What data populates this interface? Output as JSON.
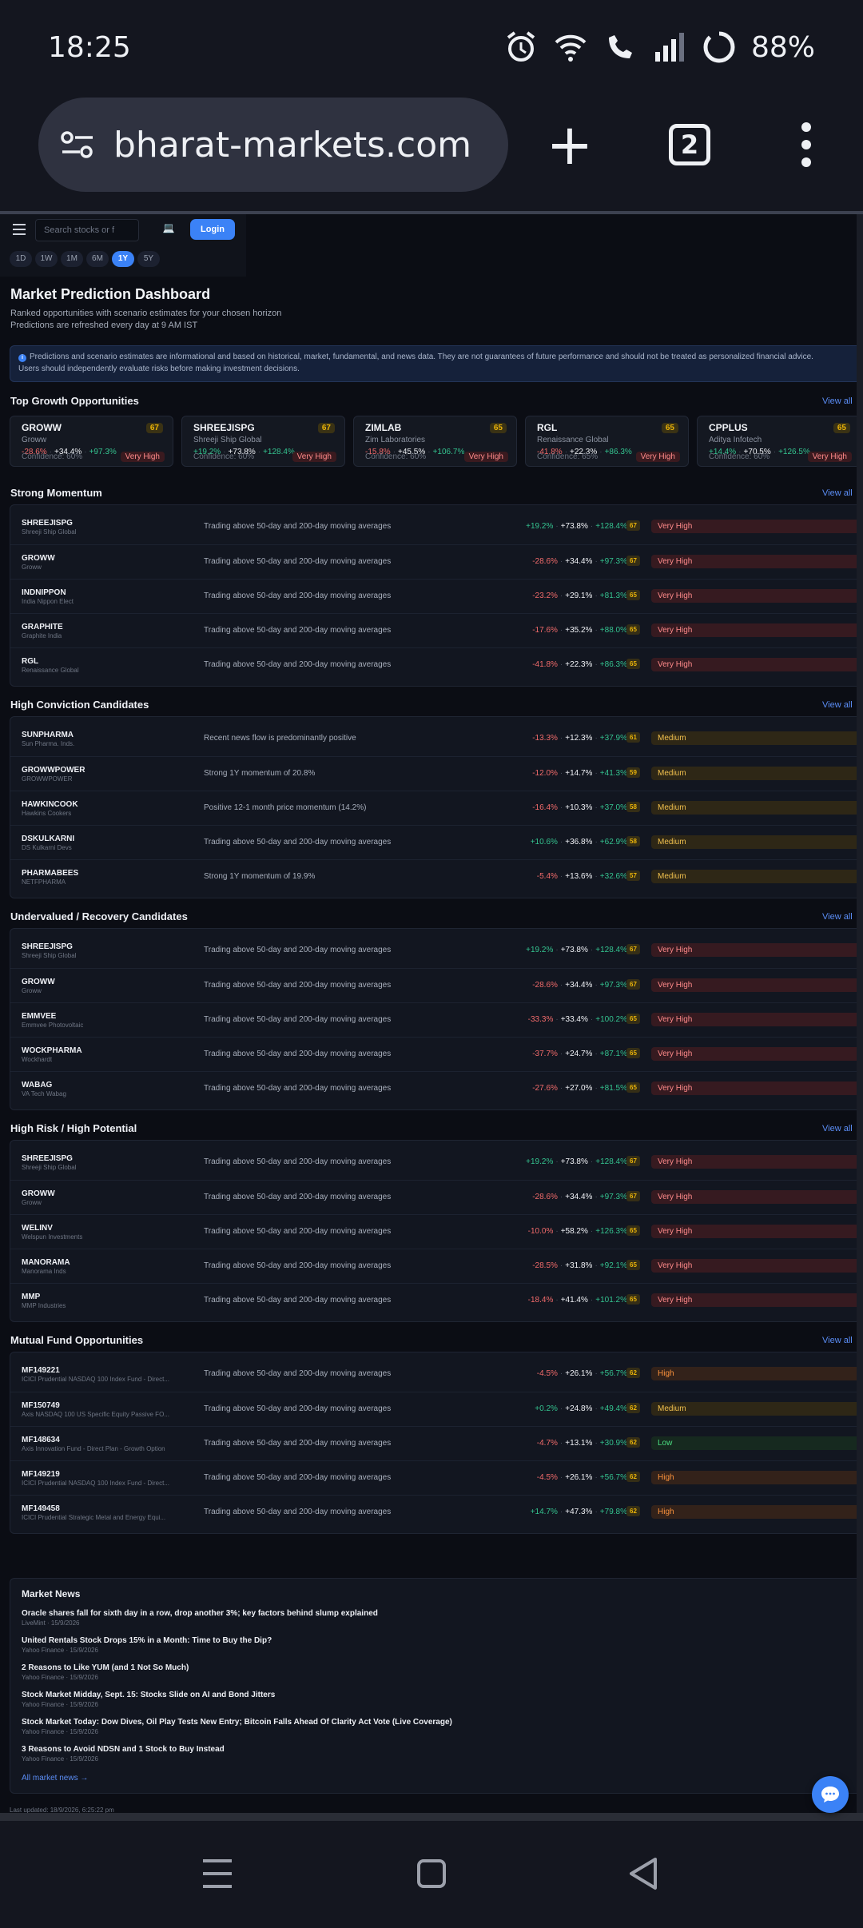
{
  "status_bar": {
    "time": "18:25",
    "battery": "88%"
  },
  "browser": {
    "url": "bharat-markets.com",
    "tab_count": "2"
  },
  "nav": {
    "search_placeholder": "Search stocks or f",
    "login_label": "Login",
    "horizons": [
      "1D",
      "1W",
      "1M",
      "6M",
      "1Y",
      "5Y"
    ],
    "active_horizon": "1Y"
  },
  "header": {
    "title": "Market Prediction Dashboard",
    "subtitle": "Ranked opportunities with scenario estimates for your chosen horizon",
    "refresh_note": "Predictions are refreshed every day at 9 AM IST",
    "disclaimer_1": "Predictions and scenario estimates are informational and based on historical, market, fundamental, and news data. They are not guarantees of future performance and should not be treated as personalized financial advice.",
    "disclaimer_2": "Users should independently evaluate risks before making investment decisions."
  },
  "view_all_label": "View all",
  "top_growth": {
    "title": "Top Growth Opportunities",
    "cards": [
      {
        "symbol": "GROWW",
        "name": "Groww",
        "score": "67",
        "bear": "-28.6%",
        "base": "+34.4%",
        "bull": "+97.3%",
        "confidence": "Confidence: 60%",
        "risk": "Very High"
      },
      {
        "symbol": "SHREEJISPG",
        "name": "Shreeji Ship Global",
        "score": "67",
        "bear": "+19.2%",
        "base": "+73.8%",
        "bull": "+128.4%",
        "confidence": "Confidence: 60%",
        "risk": "Very High"
      },
      {
        "symbol": "ZIMLAB",
        "name": "Zim Laboratories",
        "score": "65",
        "bear": "-15.8%",
        "base": "+45.5%",
        "bull": "+106.7%",
        "confidence": "Confidence: 60%",
        "risk": "Very High"
      },
      {
        "symbol": "RGL",
        "name": "Renaissance Global",
        "score": "65",
        "bear": "-41.8%",
        "base": "+22.3%",
        "bull": "+86.3%",
        "confidence": "Confidence: 65%",
        "risk": "Very High"
      },
      {
        "symbol": "CPPLUS",
        "name": "Aditya Infotech",
        "score": "65",
        "bear": "+14.4%",
        "base": "+70.5%",
        "bull": "+126.5%",
        "confidence": "Confidence: 60%",
        "risk": "Very High"
      }
    ]
  },
  "sections": [
    {
      "title": "Strong Momentum",
      "rows": [
        {
          "symbol": "SHREEJISPG",
          "name": "Shreeji Ship Global",
          "reason": "Trading above 50-day and 200-day moving averages",
          "bear": "+19.2%",
          "base": "+73.8%",
          "bull": "+128.4%",
          "score": "67",
          "risk": "Very High",
          "risk_class": "risk-vh"
        },
        {
          "symbol": "GROWW",
          "name": "Groww",
          "reason": "Trading above 50-day and 200-day moving averages",
          "bear": "-28.6%",
          "base": "+34.4%",
          "bull": "+97.3%",
          "score": "67",
          "risk": "Very High",
          "risk_class": "risk-vh"
        },
        {
          "symbol": "INDNIPPON",
          "name": "India Nippon Elect",
          "reason": "Trading above 50-day and 200-day moving averages",
          "bear": "-23.2%",
          "base": "+29.1%",
          "bull": "+81.3%",
          "score": "65",
          "risk": "Very High",
          "risk_class": "risk-vh"
        },
        {
          "symbol": "GRAPHITE",
          "name": "Graphite India",
          "reason": "Trading above 50-day and 200-day moving averages",
          "bear": "-17.6%",
          "base": "+35.2%",
          "bull": "+88.0%",
          "score": "65",
          "risk": "Very High",
          "risk_class": "risk-vh"
        },
        {
          "symbol": "RGL",
          "name": "Renaissance Global",
          "reason": "Trading above 50-day and 200-day moving averages",
          "bear": "-41.8%",
          "base": "+22.3%",
          "bull": "+86.3%",
          "score": "65",
          "risk": "Very High",
          "risk_class": "risk-vh"
        }
      ]
    },
    {
      "title": "High Conviction Candidates",
      "rows": [
        {
          "symbol": "SUNPHARMA",
          "name": "Sun Pharma. Inds.",
          "reason": "Recent news flow is predominantly positive",
          "bear": "-13.3%",
          "base": "+12.3%",
          "bull": "+37.9%",
          "score": "61",
          "risk": "Medium",
          "risk_class": "risk-med"
        },
        {
          "symbol": "GROWWPOWER",
          "name": "GROWWPOWER",
          "reason": "Strong 1Y momentum of 20.8%",
          "bear": "-12.0%",
          "base": "+14.7%",
          "bull": "+41.3%",
          "score": "59",
          "risk": "Medium",
          "risk_class": "risk-med"
        },
        {
          "symbol": "HAWKINCOOK",
          "name": "Hawkins Cookers",
          "reason": "Positive 12-1 month price momentum (14.2%)",
          "bear": "-16.4%",
          "base": "+10.3%",
          "bull": "+37.0%",
          "score": "58",
          "risk": "Medium",
          "risk_class": "risk-med"
        },
        {
          "symbol": "DSKULKARNI",
          "name": "DS Kulkarni Devs",
          "reason": "Trading above 50-day and 200-day moving averages",
          "bear": "+10.6%",
          "base": "+36.8%",
          "bull": "+62.9%",
          "score": "58",
          "risk": "Medium",
          "risk_class": "risk-med"
        },
        {
          "symbol": "PHARMABEES",
          "name": "NETFPHARMA",
          "reason": "Strong 1Y momentum of 19.9%",
          "bear": "-5.4%",
          "base": "+13.6%",
          "bull": "+32.6%",
          "score": "57",
          "risk": "Medium",
          "risk_class": "risk-med"
        }
      ]
    },
    {
      "title": "Undervalued / Recovery Candidates",
      "rows": [
        {
          "symbol": "SHREEJISPG",
          "name": "Shreeji Ship Global",
          "reason": "Trading above 50-day and 200-day moving averages",
          "bear": "+19.2%",
          "base": "+73.8%",
          "bull": "+128.4%",
          "score": "67",
          "risk": "Very High",
          "risk_class": "risk-vh"
        },
        {
          "symbol": "GROWW",
          "name": "Groww",
          "reason": "Trading above 50-day and 200-day moving averages",
          "bear": "-28.6%",
          "base": "+34.4%",
          "bull": "+97.3%",
          "score": "67",
          "risk": "Very High",
          "risk_class": "risk-vh"
        },
        {
          "symbol": "EMMVEE",
          "name": "Emmvee Photovoltaic",
          "reason": "Trading above 50-day and 200-day moving averages",
          "bear": "-33.3%",
          "base": "+33.4%",
          "bull": "+100.2%",
          "score": "65",
          "risk": "Very High",
          "risk_class": "risk-vh"
        },
        {
          "symbol": "WOCKPHARMA",
          "name": "Wockhardt",
          "reason": "Trading above 50-day and 200-day moving averages",
          "bear": "-37.7%",
          "base": "+24.7%",
          "bull": "+87.1%",
          "score": "65",
          "risk": "Very High",
          "risk_class": "risk-vh"
        },
        {
          "symbol": "WABAG",
          "name": "VA Tech Wabag",
          "reason": "Trading above 50-day and 200-day moving averages",
          "bear": "-27.6%",
          "base": "+27.0%",
          "bull": "+81.5%",
          "score": "65",
          "risk": "Very High",
          "risk_class": "risk-vh"
        }
      ]
    },
    {
      "title": "High Risk / High Potential",
      "rows": [
        {
          "symbol": "SHREEJISPG",
          "name": "Shreeji Ship Global",
          "reason": "Trading above 50-day and 200-day moving averages",
          "bear": "+19.2%",
          "base": "+73.8%",
          "bull": "+128.4%",
          "score": "67",
          "risk": "Very High",
          "risk_class": "risk-vh"
        },
        {
          "symbol": "GROWW",
          "name": "Groww",
          "reason": "Trading above 50-day and 200-day moving averages",
          "bear": "-28.6%",
          "base": "+34.4%",
          "bull": "+97.3%",
          "score": "67",
          "risk": "Very High",
          "risk_class": "risk-vh"
        },
        {
          "symbol": "WELINV",
          "name": "Welspun Investments",
          "reason": "Trading above 50-day and 200-day moving averages",
          "bear": "-10.0%",
          "base": "+58.2%",
          "bull": "+126.3%",
          "score": "65",
          "risk": "Very High",
          "risk_class": "risk-vh"
        },
        {
          "symbol": "MANORAMA",
          "name": "Manorama Inds",
          "reason": "Trading above 50-day and 200-day moving averages",
          "bear": "-28.5%",
          "base": "+31.8%",
          "bull": "+92.1%",
          "score": "65",
          "risk": "Very High",
          "risk_class": "risk-vh"
        },
        {
          "symbol": "MMP",
          "name": "MMP Industries",
          "reason": "Trading above 50-day and 200-day moving averages",
          "bear": "-18.4%",
          "base": "+41.4%",
          "bull": "+101.2%",
          "score": "65",
          "risk": "Very High",
          "risk_class": "risk-vh"
        }
      ]
    },
    {
      "title": "Mutual Fund Opportunities",
      "rows": [
        {
          "symbol": "MF149221",
          "name": "ICICI Prudential NASDAQ 100 Index Fund - Direct...",
          "reason": "Trading above 50-day and 200-day moving averages",
          "bear": "-4.5%",
          "base": "+26.1%",
          "bull": "+56.7%",
          "score": "62",
          "risk": "High",
          "risk_class": "risk-high"
        },
        {
          "symbol": "MF150749",
          "name": "Axis NASDAQ 100 US Specific Equity Passive FO...",
          "reason": "Trading above 50-day and 200-day moving averages",
          "bear": "+0.2%",
          "base": "+24.8%",
          "bull": "+49.4%",
          "score": "62",
          "risk": "Medium",
          "risk_class": "risk-med"
        },
        {
          "symbol": "MF148634",
          "name": "Axis Innovation Fund - Direct Plan - Growth Option",
          "reason": "Trading above 50-day and 200-day moving averages",
          "bear": "-4.7%",
          "base": "+13.1%",
          "bull": "+30.9%",
          "score": "62",
          "risk": "Low",
          "risk_class": "risk-low"
        },
        {
          "symbol": "MF149219",
          "name": "ICICI Prudential NASDAQ 100 Index Fund - Direct...",
          "reason": "Trading above 50-day and 200-day moving averages",
          "bear": "-4.5%",
          "base": "+26.1%",
          "bull": "+56.7%",
          "score": "62",
          "risk": "High",
          "risk_class": "risk-high"
        },
        {
          "symbol": "MF149458",
          "name": "ICICI Prudential Strategic Metal and Energy Equi...",
          "reason": "Trading above 50-day and 200-day moving averages",
          "bear": "+14.7%",
          "base": "+47.3%",
          "bull": "+79.8%",
          "score": "62",
          "risk": "High",
          "risk_class": "risk-high"
        }
      ]
    }
  ],
  "news": {
    "title": "Market News",
    "items": [
      {
        "headline": "Oracle shares fall for sixth day in a row, drop another 3%; key factors behind slump explained",
        "meta": "LiveMint · 15/9/2026"
      },
      {
        "headline": "United Rentals Stock Drops 15% in a Month: Time to Buy the Dip?",
        "meta": "Yahoo Finance · 15/9/2026"
      },
      {
        "headline": "2 Reasons to Like YUM (and 1 Not So Much)",
        "meta": "Yahoo Finance · 15/9/2026"
      },
      {
        "headline": "Stock Market Midday, Sept. 15: Stocks Slide on AI and Bond Jitters",
        "meta": "Yahoo Finance · 15/9/2026"
      },
      {
        "headline": "Stock Market Today: Dow Dives, Oil Play Tests New Entry; Bitcoin Falls Ahead Of Clarity Act Vote (Live Coverage)",
        "meta": "Yahoo Finance · 15/9/2026"
      },
      {
        "headline": "3 Reasons to Avoid NDSN and 1 Stock to Buy Instead",
        "meta": "Yahoo Finance · 15/9/2026"
      }
    ],
    "all_label": "All market news →"
  },
  "last_updated": "Last updated: 18/9/2026, 6:25:22 pm",
  "colors": {
    "accent": "#3b82f6",
    "positive": "#34c38f",
    "negative": "#f26b6b",
    "score": "#eab308"
  }
}
